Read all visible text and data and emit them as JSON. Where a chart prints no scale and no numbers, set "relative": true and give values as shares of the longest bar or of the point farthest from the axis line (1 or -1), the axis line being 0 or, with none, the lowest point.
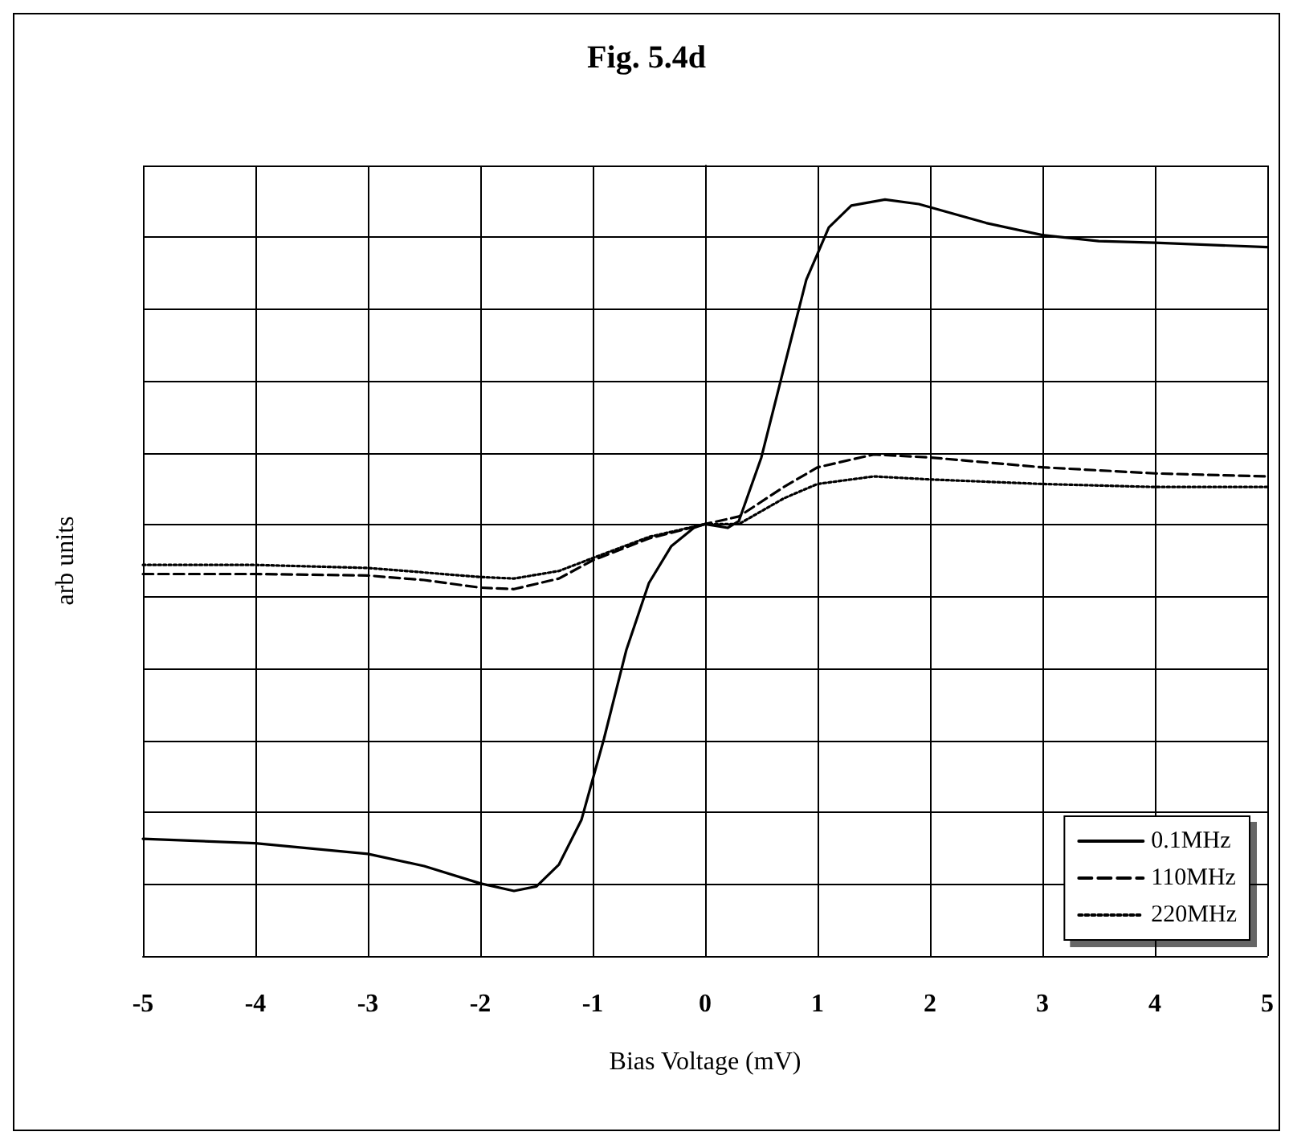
{
  "chart_data": {
    "type": "line",
    "title": "Fig. 5.4d",
    "xlabel": "Bias Voltage (mV)",
    "ylabel": "arb units",
    "relative": true,
    "xlim": [
      -5,
      5
    ],
    "xticks": [
      -5,
      -4,
      -3,
      -2,
      -1,
      0,
      1,
      2,
      3,
      4,
      5
    ],
    "tick_labels": "x",
    "grid": true,
    "legend": "bottom right",
    "marker": "none",
    "series": [
      {
        "name": "0.1MHz",
        "color": "#000000",
        "line_style": "solid",
        "x": [
          -5,
          -4,
          -3,
          -2.5,
          -2,
          -1.7,
          -1.5,
          -1.3,
          -1.1,
          -0.9,
          -0.7,
          -0.5,
          -0.3,
          -0.1,
          0,
          0.2,
          0.3,
          0.5,
          0.7,
          0.9,
          1.1,
          1.3,
          1.6,
          1.9,
          2.5,
          3,
          3.5,
          4,
          5
        ],
        "values": [
          0.155,
          0.149,
          0.135,
          0.119,
          0.096,
          0.086,
          0.092,
          0.121,
          0.18,
          0.287,
          0.405,
          0.493,
          0.542,
          0.566,
          0.571,
          0.566,
          0.575,
          0.659,
          0.777,
          0.894,
          0.963,
          0.992,
          1,
          0.994,
          0.969,
          0.953,
          0.945,
          0.943,
          0.937
        ]
      },
      {
        "name": "110MHz",
        "color": "#000000",
        "line_style": "dashed",
        "x": [
          -5,
          -4,
          -3,
          -2.5,
          -2,
          -1.7,
          -1.3,
          -1,
          -0.5,
          0,
          0.3,
          0.7,
          1,
          1.5,
          2,
          3,
          4,
          5
        ],
        "values": [
          0.505,
          0.505,
          0.503,
          0.497,
          0.487,
          0.485,
          0.499,
          0.523,
          0.552,
          0.571,
          0.581,
          0.62,
          0.646,
          0.663,
          0.659,
          0.646,
          0.638,
          0.634
        ]
      },
      {
        "name": "220MHz",
        "color": "#000000",
        "line_style": "dotted",
        "x": [
          -5,
          -4,
          -3,
          -2,
          -1.7,
          -1.3,
          -1,
          -0.5,
          0,
          0.3,
          0.7,
          1,
          1.5,
          2,
          3,
          4,
          5
        ],
        "values": [
          0.517,
          0.517,
          0.513,
          0.501,
          0.499,
          0.509,
          0.526,
          0.554,
          0.571,
          0.571,
          0.605,
          0.624,
          0.634,
          0.63,
          0.624,
          0.62,
          0.62
        ]
      }
    ]
  }
}
